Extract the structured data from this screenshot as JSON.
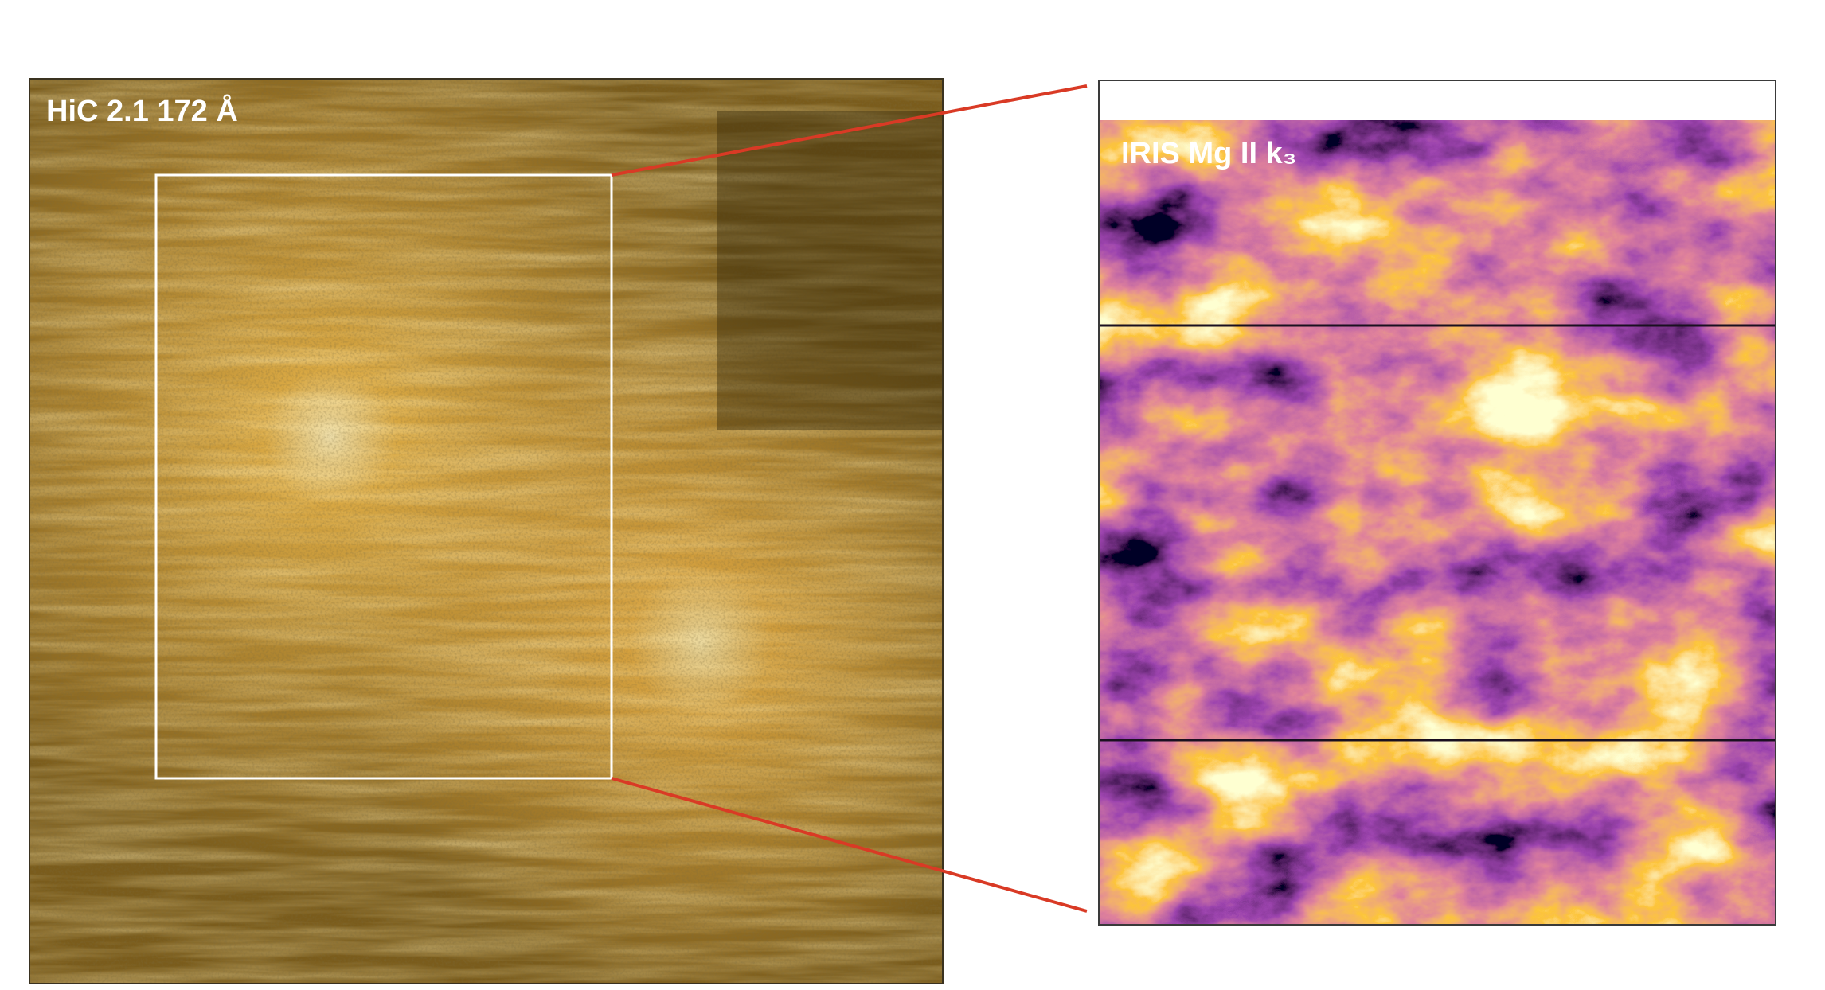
{
  "left_panel": {
    "label": "HiC 2.1 172 Å"
  },
  "right_panel": {
    "label": "IRIS Mg II k₃"
  }
}
